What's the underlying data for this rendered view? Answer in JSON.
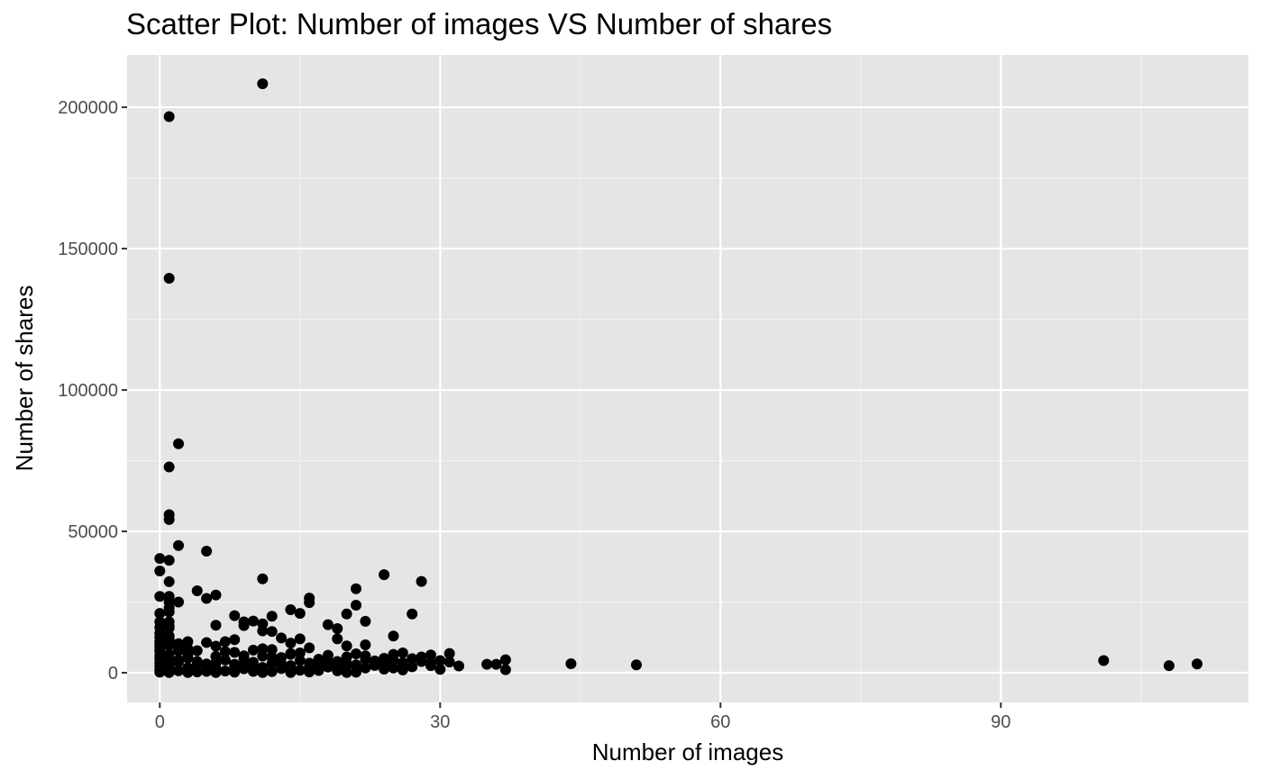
{
  "chart_data": {
    "type": "scatter",
    "title": "Scatter Plot: Number of images VS Number of shares",
    "xlabel": "Number of images",
    "ylabel": "Number of shares",
    "xlim": [
      -3.5,
      116.5
    ],
    "ylim": [
      -10500,
      218500
    ],
    "xticks": [
      0,
      30,
      60,
      90
    ],
    "xtick_labels": [
      "0",
      "30",
      "60",
      "90"
    ],
    "yticks": [
      0,
      50000,
      100000,
      150000,
      200000
    ],
    "ytick_labels": [
      "0",
      "50000",
      "100000",
      "150000",
      "200000"
    ],
    "grid": true,
    "point_color": "#000000",
    "panel_color": "#e5e5e5",
    "points": [
      [
        11,
        208300
      ],
      [
        1,
        196700
      ],
      [
        1,
        139500
      ],
      [
        2,
        81000
      ],
      [
        1,
        72800
      ],
      [
        1,
        55900
      ],
      [
        1,
        54200
      ],
      [
        2,
        45000
      ],
      [
        5,
        43000
      ],
      [
        0,
        40400
      ],
      [
        1,
        39800
      ],
      [
        24,
        34700
      ],
      [
        11,
        33200
      ],
      [
        28,
        32300
      ],
      [
        1,
        32200
      ],
      [
        0,
        36000
      ],
      [
        4,
        29000
      ],
      [
        21,
        29700
      ],
      [
        6,
        27500
      ],
      [
        1,
        27000
      ],
      [
        0,
        27000
      ],
      [
        16,
        26400
      ],
      [
        5,
        26300
      ],
      [
        2,
        25000
      ],
      [
        1,
        25000
      ],
      [
        16,
        24800
      ],
      [
        21,
        23900
      ],
      [
        1,
        23000
      ],
      [
        14,
        22300
      ],
      [
        0,
        21000
      ],
      [
        15,
        21000
      ],
      [
        1,
        21500
      ],
      [
        27,
        20800
      ],
      [
        20,
        20800
      ],
      [
        8,
        20200
      ],
      [
        12,
        20000
      ],
      [
        10,
        18300
      ],
      [
        9,
        18000
      ],
      [
        22,
        18200
      ],
      [
        1,
        18000
      ],
      [
        18,
        17000
      ],
      [
        11,
        17300
      ],
      [
        6,
        16800
      ],
      [
        9,
        16700
      ],
      [
        0,
        16000
      ],
      [
        19,
        15600
      ],
      [
        1,
        15800
      ],
      [
        12,
        14600
      ],
      [
        11,
        14800
      ],
      [
        0,
        14000
      ],
      [
        25,
        13000
      ],
      [
        1,
        13000
      ],
      [
        0,
        12500
      ],
      [
        13,
        12300
      ],
      [
        19,
        12000
      ],
      [
        8,
        11700
      ],
      [
        15,
        12000
      ],
      [
        3,
        11000
      ],
      [
        0,
        11000
      ],
      [
        7,
        11000
      ],
      [
        5,
        10700
      ],
      [
        14,
        10500
      ],
      [
        2,
        10300
      ],
      [
        0,
        10000
      ],
      [
        20,
        9500
      ],
      [
        22,
        9900
      ],
      [
        6,
        9400
      ],
      [
        1,
        9700
      ],
      [
        0,
        9000
      ],
      [
        3,
        8500
      ],
      [
        16,
        8800
      ],
      [
        10,
        8000
      ],
      [
        12,
        8200
      ],
      [
        4,
        7800
      ],
      [
        0,
        7600
      ],
      [
        2,
        7800
      ],
      [
        26,
        7000
      ],
      [
        31,
        6800
      ],
      [
        21,
        6700
      ],
      [
        8,
        7200
      ],
      [
        25,
        6500
      ],
      [
        14,
        6500
      ],
      [
        29,
        6300
      ],
      [
        1,
        6500
      ],
      [
        0,
        6000
      ],
      [
        18,
        6200
      ],
      [
        6,
        5800
      ],
      [
        11,
        5900
      ],
      [
        28,
        5600
      ],
      [
        24,
        5100
      ],
      [
        20,
        5600
      ],
      [
        13,
        5400
      ],
      [
        9,
        5000
      ],
      [
        3,
        5200
      ],
      [
        0,
        5000
      ],
      [
        37,
        4600
      ],
      [
        30,
        4300
      ],
      [
        22,
        4700
      ],
      [
        101,
        4300
      ],
      [
        1,
        4500
      ],
      [
        15,
        4300
      ],
      [
        7,
        4500
      ],
      [
        17,
        4800
      ],
      [
        19,
        4000
      ],
      [
        2,
        3800
      ],
      [
        10,
        3700
      ],
      [
        26,
        3500
      ],
      [
        0,
        3500
      ],
      [
        44,
        3200
      ],
      [
        111,
        3100
      ],
      [
        36,
        3000
      ],
      [
        5,
        3100
      ],
      [
        12,
        3300
      ],
      [
        16,
        3400
      ],
      [
        24,
        2900
      ],
      [
        21,
        2800
      ],
      [
        51,
        2800
      ],
      [
        23,
        2600
      ],
      [
        29,
        3500
      ],
      [
        32,
        2400
      ],
      [
        108,
        2500
      ],
      [
        4,
        2600
      ],
      [
        8,
        2400
      ],
      [
        14,
        2500
      ],
      [
        0,
        2200
      ],
      [
        18,
        2000
      ],
      [
        20,
        2300
      ],
      [
        27,
        2100
      ],
      [
        1,
        2000
      ],
      [
        3,
        1800
      ],
      [
        11,
        1900
      ],
      [
        22,
        1700
      ],
      [
        6,
        1600
      ],
      [
        13,
        1500
      ],
      [
        9,
        1400
      ],
      [
        30,
        1200
      ],
      [
        0,
        1000
      ],
      [
        37,
        1100
      ],
      [
        26,
        1000
      ],
      [
        15,
        900
      ],
      [
        17,
        800
      ],
      [
        2,
        700
      ],
      [
        19,
        700
      ],
      [
        24,
        1300
      ],
      [
        7,
        600
      ],
      [
        10,
        500
      ],
      [
        25,
        1700
      ],
      [
        5,
        500
      ],
      [
        12,
        400
      ],
      [
        4,
        300
      ],
      [
        16,
        300
      ],
      [
        0,
        200
      ],
      [
        21,
        200
      ],
      [
        1,
        100
      ],
      [
        8,
        200
      ],
      [
        3,
        100
      ],
      [
        14,
        100
      ],
      [
        20,
        100
      ],
      [
        11,
        100
      ],
      [
        6,
        100
      ],
      [
        28,
        4000
      ],
      [
        31,
        3800
      ],
      [
        23,
        4200
      ],
      [
        35,
        3000
      ],
      [
        9,
        2800
      ],
      [
        2,
        4500
      ],
      [
        0,
        8000
      ],
      [
        1,
        12000
      ],
      [
        0,
        18000
      ],
      [
        1,
        16500
      ],
      [
        2,
        9000
      ],
      [
        3,
        6500
      ],
      [
        4,
        4000
      ],
      [
        5,
        2500
      ],
      [
        6,
        3500
      ],
      [
        7,
        7500
      ],
      [
        8,
        3000
      ],
      [
        9,
        6000
      ],
      [
        10,
        2700
      ],
      [
        11,
        8500
      ],
      [
        12,
        5500
      ],
      [
        13,
        3200
      ],
      [
        14,
        6800
      ],
      [
        15,
        7000
      ],
      [
        16,
        2000
      ],
      [
        17,
        3500
      ],
      [
        18,
        4200
      ],
      [
        19,
        2200
      ],
      [
        20,
        3200
      ],
      [
        22,
        6000
      ],
      [
        23,
        3000
      ],
      [
        25,
        4500
      ],
      [
        26,
        2200
      ],
      [
        27,
        5000
      ],
      [
        29,
        2500
      ]
    ]
  }
}
